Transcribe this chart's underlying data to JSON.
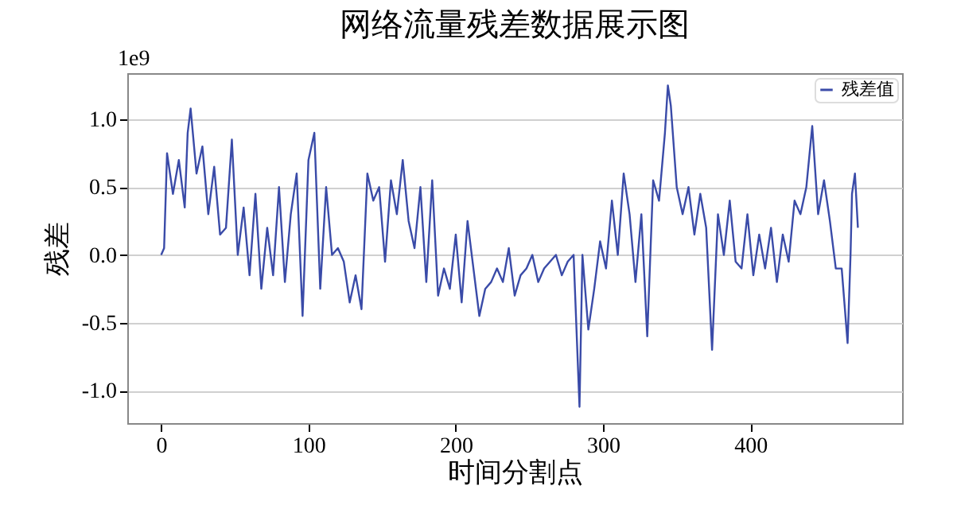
{
  "chart_data": {
    "type": "line",
    "title": "网络流量残差数据展示图",
    "xlabel": "时间分割点",
    "ylabel": "残差",
    "annotations": [
      "1e9"
    ],
    "x": [
      0,
      2,
      4,
      8,
      12,
      16,
      18,
      20,
      24,
      28,
      32,
      36,
      40,
      44,
      48,
      52,
      56,
      60,
      64,
      68,
      72,
      76,
      80,
      84,
      88,
      92,
      96,
      100,
      104,
      108,
      112,
      116,
      120,
      124,
      128,
      132,
      136,
      140,
      144,
      148,
      152,
      156,
      160,
      164,
      168,
      172,
      176,
      180,
      184,
      188,
      192,
      196,
      200,
      204,
      208,
      212,
      216,
      220,
      224,
      228,
      232,
      236,
      240,
      244,
      248,
      252,
      256,
      260,
      264,
      268,
      272,
      276,
      280,
      284,
      286,
      290,
      294,
      298,
      302,
      306,
      310,
      314,
      318,
      322,
      326,
      330,
      334,
      338,
      342,
      344,
      346,
      350,
      354,
      358,
      362,
      366,
      370,
      374,
      378,
      382,
      386,
      390,
      394,
      398,
      402,
      406,
      410,
      414,
      418,
      422,
      426,
      430,
      434,
      438,
      442,
      446,
      450,
      454,
      458,
      462,
      466,
      468,
      469,
      471,
      473
    ],
    "series": [
      {
        "name": "残差值",
        "color": "#3a4ba8",
        "values": [
          0.0,
          0.05,
          0.75,
          0.45,
          0.7,
          0.35,
          0.9,
          1.08,
          0.6,
          0.8,
          0.3,
          0.65,
          0.15,
          0.2,
          0.85,
          0.0,
          0.35,
          -0.15,
          0.45,
          -0.25,
          0.2,
          -0.15,
          0.5,
          -0.2,
          0.3,
          0.6,
          -0.45,
          0.7,
          0.9,
          -0.25,
          0.5,
          0.0,
          0.05,
          -0.05,
          -0.35,
          -0.15,
          -0.4,
          0.6,
          0.4,
          0.5,
          -0.05,
          0.55,
          0.3,
          0.7,
          0.25,
          0.05,
          0.5,
          -0.2,
          0.55,
          -0.3,
          -0.1,
          -0.25,
          0.15,
          -0.35,
          0.25,
          -0.1,
          -0.45,
          -0.25,
          -0.2,
          -0.1,
          -0.2,
          0.05,
          -0.3,
          -0.15,
          -0.1,
          0.0,
          -0.2,
          -0.1,
          -0.05,
          0.0,
          -0.15,
          -0.05,
          0.0,
          -1.12,
          0.0,
          -0.55,
          -0.25,
          0.1,
          -0.1,
          0.4,
          0.0,
          0.6,
          0.3,
          -0.2,
          0.3,
          -0.6,
          0.55,
          0.4,
          0.9,
          1.25,
          1.1,
          0.5,
          0.3,
          0.5,
          0.15,
          0.45,
          0.2,
          -0.7,
          0.3,
          0.0,
          0.4,
          -0.05,
          -0.1,
          0.3,
          -0.15,
          0.15,
          -0.1,
          0.2,
          -0.2,
          0.15,
          -0.05,
          0.4,
          0.3,
          0.5,
          0.95,
          0.3,
          0.55,
          0.25,
          -0.1,
          -0.1,
          -0.65,
          0.0,
          0.45,
          0.6,
          0.2
        ]
      }
    ],
    "xlim": [
      -23,
      503
    ],
    "ylim": [
      -1.24,
      1.34
    ],
    "xticks": [
      0,
      100,
      200,
      300,
      400
    ],
    "yticks": [
      {
        "value": -1,
        "label": "-1.0"
      },
      {
        "value": -0.5,
        "label": "-0.5"
      },
      {
        "value": 0,
        "label": "0.0"
      },
      {
        "value": 0.5,
        "label": "0.5"
      },
      {
        "value": 1,
        "label": "1.0"
      }
    ],
    "grid": "y",
    "legend": "top right",
    "line_style": "solid",
    "marker": "none"
  }
}
